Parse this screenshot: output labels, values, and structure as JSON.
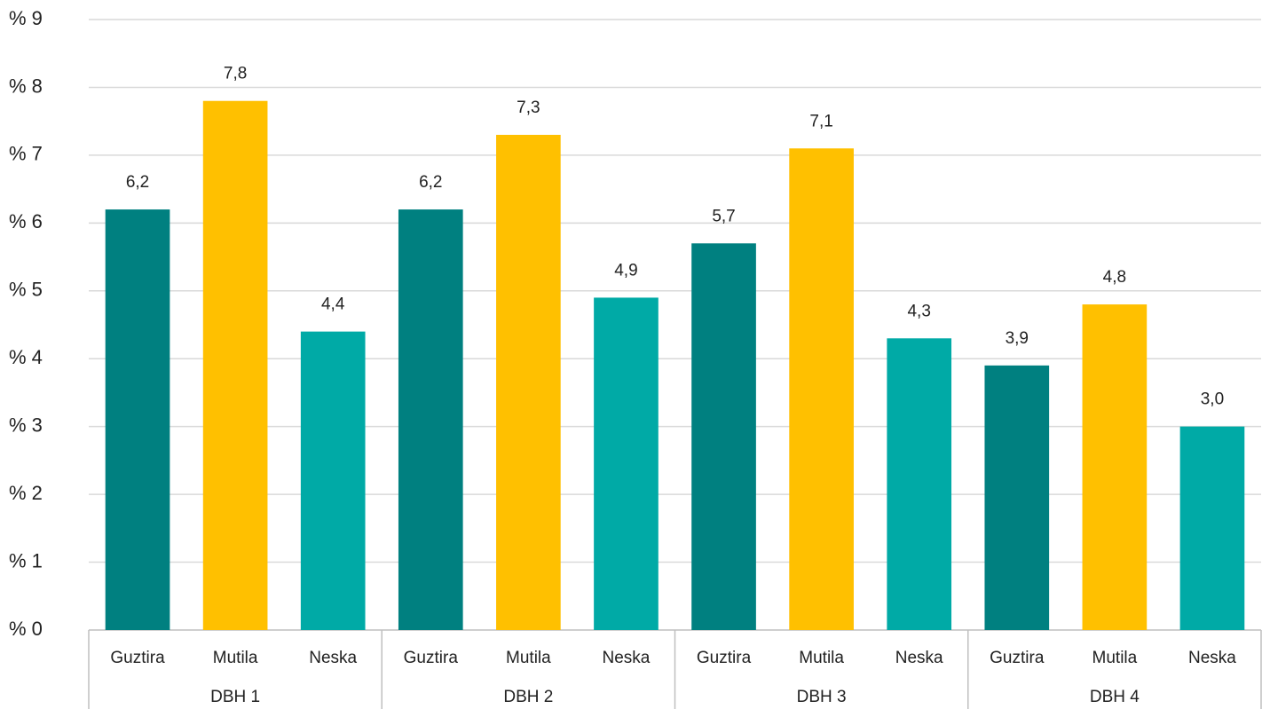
{
  "chart_data": {
    "type": "bar",
    "groups": [
      "DBH 1",
      "DBH 2",
      "DBH 3",
      "DBH 4"
    ],
    "categories": [
      "Guztira",
      "Mutila",
      "Neska",
      "Guztira",
      "Mutila",
      "Neska",
      "Guztira",
      "Mutila",
      "Neska",
      "Guztira",
      "Mutila",
      "Neska"
    ],
    "values": [
      6.2,
      7.8,
      4.4,
      6.2,
      7.3,
      4.9,
      5.7,
      7.1,
      4.3,
      3.9,
      4.8,
      3.0
    ],
    "value_labels": [
      "6,2",
      "7,8",
      "4,4",
      "6,2",
      "7,3",
      "4,9",
      "5,7",
      "7,1",
      "4,3",
      "3,9",
      "4,8",
      "3,0"
    ],
    "colors": [
      "#008080",
      "#ffc000",
      "#00aaa6",
      "#008080",
      "#ffc000",
      "#00aaa6",
      "#008080",
      "#ffc000",
      "#00aaa6",
      "#008080",
      "#ffc000",
      "#00aaa6"
    ],
    "ylim": [
      0,
      9
    ],
    "yticks": [
      {
        "value": 0,
        "label": "% 0"
      },
      {
        "value": 1,
        "label": "% 1"
      },
      {
        "value": 2,
        "label": "% 2"
      },
      {
        "value": 3,
        "label": "% 3"
      },
      {
        "value": 4,
        "label": "% 4"
      },
      {
        "value": 5,
        "label": "% 5"
      },
      {
        "value": 6,
        "label": "% 6"
      },
      {
        "value": 7,
        "label": "% 7"
      },
      {
        "value": 8,
        "label": "% 8"
      },
      {
        "value": 9,
        "label": "% 9"
      }
    ],
    "grid": true
  }
}
